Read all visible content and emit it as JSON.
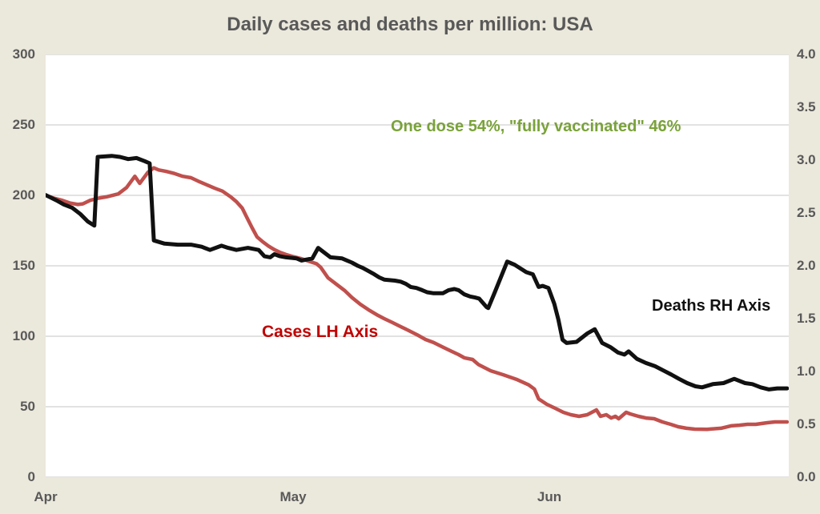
{
  "page": {
    "background": "#ebe8dc",
    "plot_background": "#ffffff",
    "gridline_color": "#d9d9d9",
    "text_color": "#595959"
  },
  "chart": {
    "title": "Daily cases and deaths per million: USA",
    "annotations": {
      "vaccine_note": {
        "text": "One dose 54%, \"fully vaccinated\" 46%",
        "color": "#7aa23a"
      },
      "cases_label": {
        "text": "Cases LH Axis",
        "color": "#c00000"
      },
      "deaths_label": {
        "text": "Deaths RH Axis",
        "color": "#111111"
      }
    }
  },
  "chart_data": {
    "type": "line",
    "title": "Daily cases and deaths per million: USA",
    "x_axis": {
      "unit": "days since Apr 1",
      "range": [
        0,
        90
      ],
      "month_ticks": [
        {
          "label": "Apr",
          "day": 0
        },
        {
          "label": "May",
          "day": 30
        },
        {
          "label": "Jun",
          "day": 61
        }
      ]
    },
    "left_axis": {
      "series": "Cases per million",
      "range": [
        0,
        300
      ],
      "ticks": [
        "300",
        "250",
        "200",
        "150",
        "100",
        "50",
        "0"
      ],
      "tick_values": [
        300,
        250,
        200,
        150,
        100,
        50,
        0
      ]
    },
    "right_axis": {
      "series": "Deaths per million",
      "range": [
        0,
        4
      ],
      "ticks": [
        "4.0",
        "3.5",
        "3.0",
        "2.5",
        "2.0",
        "1.5",
        "1.0",
        "0.5",
        "0.0"
      ],
      "tick_values": [
        4,
        3.5,
        3,
        2.5,
        2,
        1.5,
        1,
        0.5,
        0
      ]
    },
    "grid": "horizontal, at left-axis ticks",
    "legend": "inline text labels",
    "series": [
      {
        "name": "Cases LH Axis",
        "axis": "left",
        "color": "#c0504d",
        "stroke_width": 4.5,
        "points": [
          [
            0,
            200
          ],
          [
            1,
            198
          ],
          [
            2,
            196.5
          ],
          [
            3,
            194.5
          ],
          [
            3.9,
            193.5
          ],
          [
            4.5,
            194
          ],
          [
            5.4,
            196.5
          ],
          [
            6.4,
            198
          ],
          [
            7.4,
            199
          ],
          [
            8.8,
            201
          ],
          [
            9.8,
            205.5
          ],
          [
            10.8,
            213.5
          ],
          [
            11.4,
            208.5
          ],
          [
            12.4,
            216.5
          ],
          [
            13.1,
            219.5
          ],
          [
            13.7,
            218
          ],
          [
            14.6,
            217
          ],
          [
            15.6,
            215.5
          ],
          [
            16.6,
            213.5
          ],
          [
            17.6,
            212.5
          ],
          [
            18.5,
            210
          ],
          [
            19.5,
            207.5
          ],
          [
            20.5,
            205
          ],
          [
            21.4,
            203
          ],
          [
            22.4,
            199
          ],
          [
            23.1,
            195.5
          ],
          [
            23.8,
            191
          ],
          [
            24.4,
            184
          ],
          [
            25,
            177
          ],
          [
            25.6,
            170.5
          ],
          [
            26.3,
            167
          ],
          [
            27,
            164
          ],
          [
            27.7,
            161.5
          ],
          [
            28.4,
            159.5
          ],
          [
            29.1,
            158
          ],
          [
            30,
            156.5
          ],
          [
            31,
            155
          ],
          [
            32,
            153
          ],
          [
            32.8,
            151.5
          ],
          [
            33.3,
            149
          ],
          [
            34.2,
            141.5
          ],
          [
            35.2,
            137
          ],
          [
            36.2,
            132.5
          ],
          [
            37.1,
            127.5
          ],
          [
            38.1,
            122.7
          ],
          [
            39.1,
            118.8
          ],
          [
            40.1,
            115.3
          ],
          [
            41,
            112.5
          ],
          [
            42,
            109.7
          ],
          [
            43,
            106.8
          ],
          [
            44,
            104
          ],
          [
            45,
            101
          ],
          [
            46,
            97.7
          ],
          [
            47,
            95.5
          ],
          [
            48,
            92.6
          ],
          [
            49,
            89.8
          ],
          [
            50,
            87
          ],
          [
            50.7,
            84.7
          ],
          [
            51.7,
            83.5
          ],
          [
            52.4,
            80
          ],
          [
            53.9,
            75.5
          ],
          [
            55.5,
            72.5
          ],
          [
            57,
            69.5
          ],
          [
            58.5,
            65.5
          ],
          [
            59.2,
            62.5
          ],
          [
            59.7,
            55.5
          ],
          [
            60.7,
            51.7
          ],
          [
            61.7,
            48.9
          ],
          [
            62.7,
            46
          ],
          [
            63.6,
            44.3
          ],
          [
            64.6,
            43.2
          ],
          [
            65.6,
            44.3
          ],
          [
            66.7,
            47.7
          ],
          [
            67.2,
            43.2
          ],
          [
            67.9,
            44.3
          ],
          [
            68.5,
            42
          ],
          [
            69,
            43.2
          ],
          [
            69.4,
            41.5
          ],
          [
            70.3,
            46
          ],
          [
            70.8,
            44.9
          ],
          [
            71.8,
            43.2
          ],
          [
            72.7,
            42
          ],
          [
            73.7,
            41.5
          ],
          [
            74.7,
            39.2
          ],
          [
            75.7,
            37.5
          ],
          [
            76.6,
            35.8
          ],
          [
            77.6,
            34.7
          ],
          [
            78.6,
            34.1
          ],
          [
            80.1,
            34
          ],
          [
            81.8,
            34.7
          ],
          [
            83,
            36.4
          ],
          [
            84,
            36.9
          ],
          [
            85,
            37.5
          ],
          [
            86,
            37.5
          ],
          [
            87.3,
            38.6
          ],
          [
            88.3,
            39.2
          ],
          [
            89.8,
            39.2
          ]
        ]
      },
      {
        "name": "Deaths RH Axis",
        "axis": "right",
        "color": "#111111",
        "stroke_width": 5,
        "points": [
          [
            0,
            2.67
          ],
          [
            1.3,
            2.62
          ],
          [
            2.2,
            2.58
          ],
          [
            3.2,
            2.55
          ],
          [
            4.2,
            2.49
          ],
          [
            5.1,
            2.42
          ],
          [
            5.9,
            2.38
          ],
          [
            6.3,
            3.03
          ],
          [
            8,
            3.04
          ],
          [
            9,
            3.03
          ],
          [
            10,
            3.01
          ],
          [
            11,
            3.02
          ],
          [
            12,
            2.99
          ],
          [
            12.6,
            2.97
          ],
          [
            13.1,
            2.24
          ],
          [
            14.4,
            2.21
          ],
          [
            16,
            2.2
          ],
          [
            17.6,
            2.2
          ],
          [
            18.9,
            2.18
          ],
          [
            19.9,
            2.15
          ],
          [
            21.3,
            2.19
          ],
          [
            22.1,
            2.17
          ],
          [
            23.1,
            2.15
          ],
          [
            24.5,
            2.17
          ],
          [
            25.8,
            2.15
          ],
          [
            26.5,
            2.09
          ],
          [
            27.2,
            2.08
          ],
          [
            27.7,
            2.11
          ],
          [
            28.4,
            2.09
          ],
          [
            29.1,
            2.08
          ],
          [
            30.4,
            2.07
          ],
          [
            31,
            2.05
          ],
          [
            32.3,
            2.07
          ],
          [
            33,
            2.17
          ],
          [
            34,
            2.11
          ],
          [
            34.5,
            2.08
          ],
          [
            35.9,
            2.07
          ],
          [
            36.5,
            2.05
          ],
          [
            37.1,
            2.03
          ],
          [
            37.8,
            2.0
          ],
          [
            38.4,
            1.98
          ],
          [
            39.1,
            1.95
          ],
          [
            39.8,
            1.92
          ],
          [
            40.4,
            1.89
          ],
          [
            41,
            1.87
          ],
          [
            42.3,
            1.86
          ],
          [
            43,
            1.85
          ],
          [
            43.6,
            1.83
          ],
          [
            44.2,
            1.8
          ],
          [
            44.9,
            1.79
          ],
          [
            45.6,
            1.77
          ],
          [
            46.2,
            1.75
          ],
          [
            47,
            1.74
          ],
          [
            48.1,
            1.74
          ],
          [
            48.8,
            1.77
          ],
          [
            49.5,
            1.78
          ],
          [
            50,
            1.77
          ],
          [
            50.7,
            1.73
          ],
          [
            51.4,
            1.71
          ],
          [
            52,
            1.7
          ],
          [
            52.5,
            1.69
          ],
          [
            53.4,
            1.61
          ],
          [
            53.6,
            1.6
          ],
          [
            54.4,
            1.75
          ],
          [
            55.9,
            2.04
          ],
          [
            56.8,
            2.01
          ],
          [
            58.2,
            1.94
          ],
          [
            59,
            1.92
          ],
          [
            59.7,
            1.8
          ],
          [
            60.2,
            1.81
          ],
          [
            60.9,
            1.79
          ],
          [
            61.6,
            1.64
          ],
          [
            62.1,
            1.49
          ],
          [
            62.6,
            1.3
          ],
          [
            63.1,
            1.27
          ],
          [
            64.3,
            1.28
          ],
          [
            65.6,
            1.36
          ],
          [
            66.5,
            1.4
          ],
          [
            67.4,
            1.27
          ],
          [
            68.4,
            1.23
          ],
          [
            69.3,
            1.18
          ],
          [
            70.1,
            1.16
          ],
          [
            70.6,
            1.19
          ],
          [
            71.6,
            1.12
          ],
          [
            72.7,
            1.08
          ],
          [
            73.8,
            1.05
          ],
          [
            74.8,
            1.01
          ],
          [
            75.8,
            0.97
          ],
          [
            76.7,
            0.93
          ],
          [
            77.7,
            0.89
          ],
          [
            78.7,
            0.86
          ],
          [
            79.5,
            0.85
          ],
          [
            80.8,
            0.88
          ],
          [
            82.1,
            0.89
          ],
          [
            83.4,
            0.93
          ],
          [
            84.7,
            0.89
          ],
          [
            85.6,
            0.88
          ],
          [
            86.6,
            0.85
          ],
          [
            87.6,
            0.83
          ],
          [
            88.6,
            0.84
          ],
          [
            89.8,
            0.84
          ]
        ]
      }
    ]
  }
}
